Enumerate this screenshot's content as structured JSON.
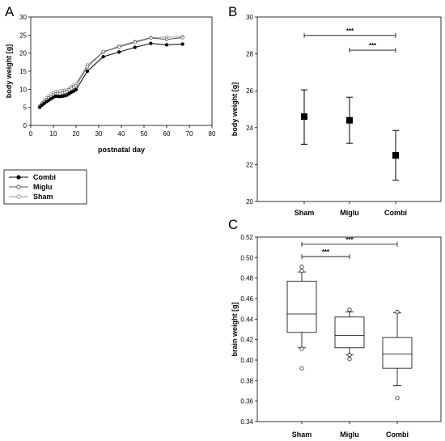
{
  "chart_data": [
    {
      "panel": "A",
      "type": "line",
      "xlabel": "postnatal day",
      "ylabel": "body weight [g]",
      "xlim": [
        0,
        80
      ],
      "ylim": [
        0,
        30
      ],
      "xticks": [
        0,
        10,
        20,
        30,
        40,
        50,
        60,
        70,
        80
      ],
      "yticks": [
        0,
        5,
        10,
        15,
        20,
        25,
        30
      ],
      "legend_position": "below",
      "series": [
        {
          "name": "Combi",
          "marker": "filled-circle",
          "x": [
            4,
            5,
            6,
            7,
            8,
            9,
            10,
            11,
            12,
            13,
            14,
            15,
            16,
            17,
            18,
            19,
            20,
            25,
            32,
            39,
            46,
            53,
            60,
            67
          ],
          "y": [
            5.0,
            5.6,
            6.1,
            6.6,
            7.0,
            7.4,
            7.8,
            8.1,
            8.0,
            8.0,
            8.1,
            8.2,
            8.4,
            8.8,
            9.2,
            9.5,
            9.9,
            15.0,
            19.0,
            20.3,
            21.6,
            22.7,
            22.3,
            22.5
          ]
        },
        {
          "name": "Miglu",
          "marker": "open-circle",
          "x": [
            4,
            5,
            6,
            7,
            8,
            9,
            10,
            11,
            12,
            13,
            14,
            15,
            16,
            17,
            18,
            19,
            20,
            25,
            32,
            39,
            46,
            53,
            60,
            67
          ],
          "y": [
            5.2,
            5.9,
            6.5,
            7.1,
            7.6,
            8.0,
            8.4,
            8.7,
            8.8,
            8.8,
            9.0,
            9.2,
            9.4,
            9.8,
            10.2,
            10.6,
            11.0,
            16.2,
            20.4,
            21.7,
            23.0,
            24.2,
            23.8,
            24.3
          ]
        },
        {
          "name": "Sham",
          "marker": "open-circle",
          "x": [
            4,
            5,
            6,
            7,
            8,
            9,
            10,
            11,
            12,
            13,
            14,
            15,
            16,
            17,
            18,
            19,
            20,
            25,
            32,
            39,
            46,
            53,
            60,
            67
          ],
          "y": [
            5.4,
            6.2,
            6.9,
            7.6,
            8.1,
            8.6,
            9.0,
            9.3,
            9.4,
            9.5,
            9.6,
            9.7,
            9.8,
            10.2,
            10.7,
            11.2,
            11.6,
            16.7,
            20.2,
            22.0,
            23.2,
            24.3,
            24.4,
            24.5
          ]
        }
      ]
    },
    {
      "panel": "B",
      "type": "scatter",
      "ylabel": "body weight [g]",
      "categories": [
        "Sham",
        "Miglu",
        "Combi"
      ],
      "ylim": [
        20,
        30
      ],
      "yticks": [
        20,
        22,
        24,
        26,
        28,
        30
      ],
      "values": [
        24.6,
        24.4,
        22.5
      ],
      "err_low": [
        23.1,
        23.15,
        21.15
      ],
      "err_high": [
        26.05,
        25.65,
        23.85
      ],
      "significance": [
        {
          "from": "Sham",
          "to": "Combi",
          "label": "***",
          "y": 29.0
        },
        {
          "from": "Miglu",
          "to": "Combi",
          "label": "***",
          "y": 28.2
        }
      ]
    },
    {
      "panel": "C",
      "type": "box",
      "ylabel": "brain weight [g]",
      "categories": [
        "Sham",
        "Miglu",
        "Combi"
      ],
      "ylim": [
        0.34,
        0.52
      ],
      "yticks": [
        0.34,
        0.36,
        0.38,
        0.4,
        0.42,
        0.44,
        0.46,
        0.48,
        0.5,
        0.52
      ],
      "boxes": [
        {
          "q1": 0.427,
          "median": 0.445,
          "q3": 0.477,
          "whisker_low": 0.412,
          "whisker_high": 0.486,
          "outliers": [
            0.491,
            0.487,
            0.411,
            0.392
          ]
        },
        {
          "q1": 0.412,
          "median": 0.424,
          "q3": 0.442,
          "whisker_low": 0.405,
          "whisker_high": 0.447,
          "outliers": [
            0.449,
            0.405,
            0.401
          ]
        },
        {
          "q1": 0.392,
          "median": 0.406,
          "q3": 0.422,
          "whisker_low": 0.375,
          "whisker_high": 0.446,
          "outliers": [
            0.447,
            0.363
          ]
        }
      ],
      "significance": [
        {
          "from": "Sham",
          "to": "Combi",
          "label": "***",
          "y": 0.513
        },
        {
          "from": "Sham",
          "to": "Miglu",
          "label": "***",
          "y": 0.501
        }
      ]
    }
  ]
}
